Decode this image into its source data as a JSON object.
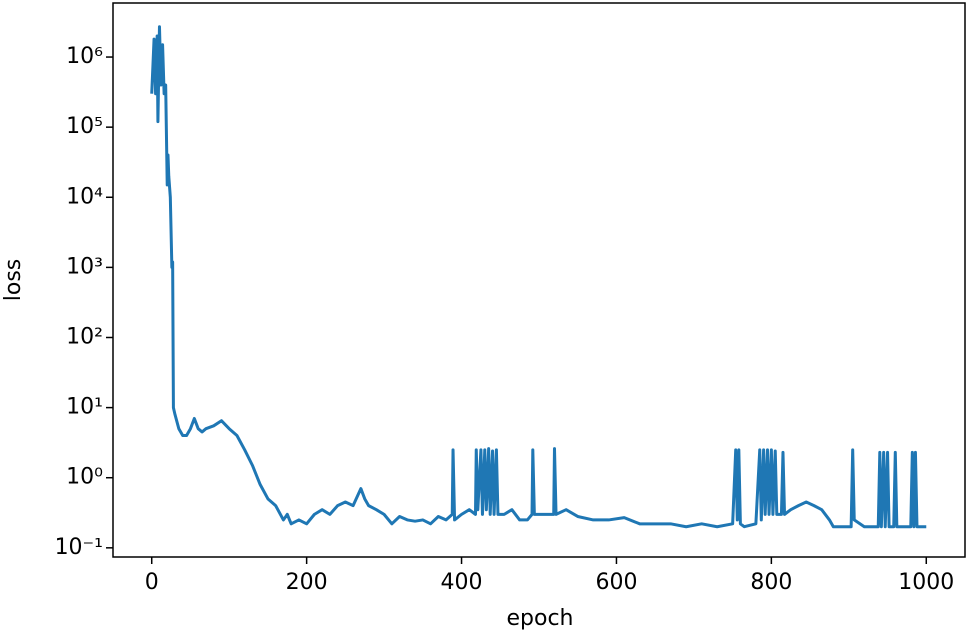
{
  "chart_data": {
    "type": "line",
    "xlabel": "epoch",
    "ylabel": "loss",
    "yscale": "log",
    "xlim": [
      -50,
      1050
    ],
    "ylim": [
      0.074,
      5900000
    ],
    "xticks": [
      0,
      200,
      400,
      600,
      800,
      1000
    ],
    "yticks": [
      {
        "value": 0.1,
        "label": "10⁻¹"
      },
      {
        "value": 1,
        "label": "10⁰"
      },
      {
        "value": 10,
        "label": "10¹"
      },
      {
        "value": 100,
        "label": "10²"
      },
      {
        "value": 1000,
        "label": "10³"
      },
      {
        "value": 10000,
        "label": "10⁴"
      },
      {
        "value": 100000,
        "label": "10⁵"
      },
      {
        "value": 1000000,
        "label": "10⁶"
      }
    ],
    "series": [
      {
        "color": "#1f77b4",
        "x": [
          0,
          3,
          5,
          7,
          8,
          10,
          12,
          14,
          16,
          18,
          20,
          21,
          22,
          24,
          26,
          27,
          28,
          30,
          35,
          40,
          45,
          50,
          55,
          60,
          65,
          70,
          80,
          90,
          100,
          110,
          120,
          130,
          140,
          150,
          160,
          170,
          175,
          180,
          190,
          200,
          210,
          220,
          230,
          240,
          250,
          260,
          270,
          275,
          280,
          290,
          300,
          310,
          320,
          330,
          340,
          350,
          360,
          370,
          380,
          388,
          389,
          391,
          400,
          410,
          418,
          419,
          421,
          425,
          427,
          430,
          432,
          435,
          437,
          440,
          442,
          445,
          447,
          455,
          465,
          475,
          485,
          491,
          492,
          494,
          505,
          519,
          520,
          522,
          535,
          550,
          570,
          590,
          610,
          630,
          650,
          670,
          690,
          710,
          730,
          750,
          754,
          756,
          758,
          760,
          765,
          780,
          785,
          787,
          790,
          792,
          795,
          797,
          800,
          802,
          805,
          807,
          813,
          815,
          817,
          825,
          835,
          845,
          855,
          865,
          875,
          880,
          903,
          905,
          907,
          920,
          938,
          940,
          942,
          945,
          947,
          950,
          952,
          958,
          960,
          962,
          980,
          982,
          984,
          986,
          988,
          1000
        ],
        "values": [
          300000,
          1800000,
          300000,
          2000000,
          120000,
          2700000,
          400000,
          1500000,
          300000,
          400000,
          15000,
          40000,
          20000,
          10000,
          1000,
          1200,
          10,
          8,
          5,
          4,
          4,
          5,
          7,
          5,
          4.5,
          5,
          5.5,
          6.5,
          5,
          4,
          2.5,
          1.5,
          0.8,
          0.5,
          0.4,
          0.25,
          0.3,
          0.22,
          0.25,
          0.22,
          0.3,
          0.35,
          0.3,
          0.4,
          0.45,
          0.4,
          0.7,
          0.5,
          0.4,
          0.35,
          0.3,
          0.22,
          0.28,
          0.25,
          0.24,
          0.25,
          0.22,
          0.28,
          0.25,
          0.3,
          2.5,
          0.25,
          0.3,
          0.35,
          0.3,
          2.5,
          0.35,
          2.5,
          0.3,
          2.5,
          0.35,
          2.6,
          0.3,
          2.4,
          0.3,
          2.5,
          0.3,
          0.3,
          0.35,
          0.25,
          0.25,
          0.3,
          2.5,
          0.3,
          0.3,
          0.3,
          2.6,
          0.3,
          0.35,
          0.28,
          0.25,
          0.25,
          0.27,
          0.22,
          0.22,
          0.22,
          0.2,
          0.22,
          0.2,
          0.22,
          2.5,
          0.25,
          2.5,
          0.22,
          0.2,
          0.22,
          2.5,
          0.25,
          2.5,
          0.3,
          2.5,
          0.3,
          2.5,
          0.3,
          2.4,
          0.3,
          0.3,
          2.3,
          0.3,
          0.35,
          0.4,
          0.45,
          0.4,
          0.35,
          0.25,
          0.2,
          0.2,
          2.5,
          0.25,
          0.2,
          0.2,
          2.3,
          0.2,
          2.3,
          0.2,
          2.3,
          0.2,
          0.2,
          2.3,
          0.2,
          0.2,
          2.3,
          0.2,
          2.3,
          0.2,
          0.2
        ]
      }
    ]
  }
}
